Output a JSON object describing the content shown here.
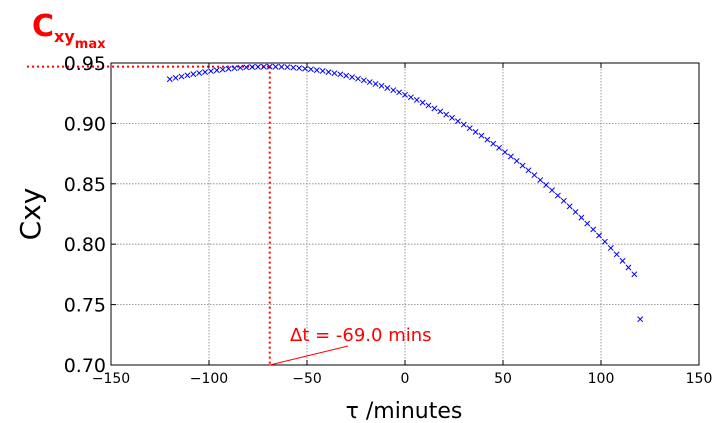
{
  "chart_data": {
    "type": "scatter",
    "marker": "x",
    "xlabel": "τ /minutes",
    "ylabel": "Cxy",
    "xlim": [
      -150,
      150
    ],
    "ylim": [
      0.7,
      0.95
    ],
    "xticks": [
      "−150",
      "−100",
      "−50",
      "0",
      "50",
      "100",
      "150"
    ],
    "xtick_values": [
      -150,
      -100,
      -50,
      0,
      50,
      100,
      150
    ],
    "yticks": [
      "0.70",
      "0.75",
      "0.80",
      "0.85",
      "0.90",
      "0.95"
    ],
    "ytick_values": [
      0.7,
      0.75,
      0.8,
      0.85,
      0.9,
      0.95
    ],
    "grid": true,
    "series": [
      {
        "color": "#0000ff",
        "x": [
          -120,
          -117,
          -114,
          -111,
          -108,
          -105,
          -102,
          -99,
          -96,
          -93,
          -90,
          -87,
          -84,
          -81,
          -78,
          -75,
          -72,
          -69,
          -66,
          -63,
          -60,
          -57,
          -54,
          -51,
          -48,
          -45,
          -42,
          -39,
          -36,
          -33,
          -30,
          -27,
          -24,
          -21,
          -18,
          -15,
          -12,
          -9,
          -6,
          -3,
          0,
          3,
          6,
          9,
          12,
          15,
          18,
          21,
          24,
          27,
          30,
          33,
          36,
          39,
          42,
          45,
          48,
          51,
          54,
          57,
          60,
          63,
          66,
          69,
          72,
          75,
          78,
          81,
          84,
          87,
          90,
          93,
          96,
          99,
          102,
          105,
          108,
          111,
          114,
          117,
          120
        ],
        "y": [
          0.9366,
          0.9377,
          0.9388,
          0.9398,
          0.9408,
          0.9417,
          0.9425,
          0.9433,
          0.944,
          0.9446,
          0.9452,
          0.9457,
          0.9461,
          0.9464,
          0.9467,
          0.9468,
          0.9469,
          0.947,
          0.9469,
          0.9468,
          0.9466,
          0.9462,
          0.9458,
          0.9453,
          0.9448,
          0.9441,
          0.9434,
          0.9425,
          0.9416,
          0.9406,
          0.9395,
          0.9383,
          0.937,
          0.9357,
          0.9342,
          0.9327,
          0.9311,
          0.9293,
          0.9275,
          0.9257,
          0.9237,
          0.9216,
          0.9194,
          0.9172,
          0.9149,
          0.9124,
          0.9099,
          0.9073,
          0.9046,
          0.9018,
          0.899,
          0.896,
          0.8929,
          0.8898,
          0.8865,
          0.8832,
          0.8798,
          0.8762,
          0.8726,
          0.8689,
          0.8651,
          0.8612,
          0.8572,
          0.8531,
          0.849,
          0.8447,
          0.8403,
          0.8359,
          0.8313,
          0.8267,
          0.822,
          0.8171,
          0.8122,
          0.8072,
          0.8021,
          0.7969,
          0.7916,
          0.7862,
          0.7807,
          0.7751,
          0.7379
        ]
      }
    ],
    "max_marker": {
      "x": -69.0,
      "y": 0.947,
      "color": "#ff0000",
      "label_main": "C",
      "label_sub": "xy",
      "label_subsub": "max"
    },
    "annotations": [
      {
        "text": "Δt = -69.0 mins",
        "color": "#ff0000",
        "x": -69.0,
        "y": 0.7
      }
    ]
  }
}
